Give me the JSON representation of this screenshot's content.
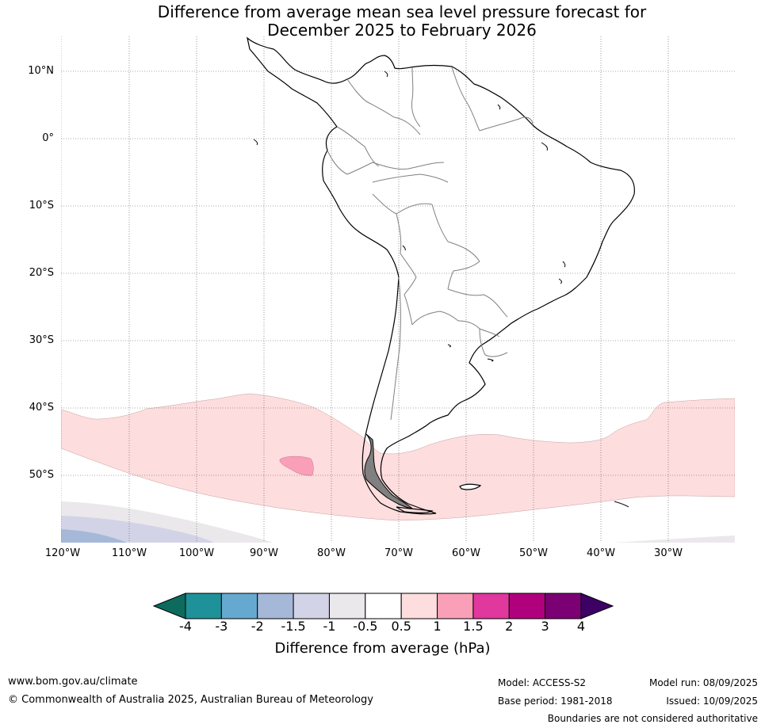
{
  "title": {
    "line1": "Difference from average mean sea level pressure forecast for",
    "line2": "December 2025 to February 2026"
  },
  "map": {
    "lat_labels": [
      "10°N",
      "0°",
      "10°S",
      "20°S",
      "30°S",
      "40°S",
      "50°S"
    ],
    "lon_labels": [
      "120°W",
      "110°W",
      "100°W",
      "90°W",
      "80°W",
      "70°W",
      "60°W",
      "50°W",
      "40°W",
      "30°W"
    ],
    "colors": {
      "land_outline": "#000000",
      "border": "#808080",
      "grid": "#555555",
      "anomaly_0_5_to_1": "#fddddd",
      "anomaly_1_to_1_5": "#f9a0b8",
      "anomaly_neg_0_5_to_neg_1": "#ebe8eb",
      "anomaly_neg_1_to_neg_1_5": "#d2d3e6",
      "anomaly_neg_1_5_to_neg_2": "#a6b8d8"
    }
  },
  "legend": {
    "title": "Difference from average (hPa)",
    "tick_labels": [
      "-4",
      "-3",
      "-2",
      "-1.5",
      "-1",
      "-0.5",
      "0.5",
      "1",
      "1.5",
      "2",
      "3",
      "4"
    ],
    "bins": [
      {
        "color": "#0d6b5e"
      },
      {
        "color": "#1f9199"
      },
      {
        "color": "#66a9d0"
      },
      {
        "color": "#a6b8d8"
      },
      {
        "color": "#d2d3e6"
      },
      {
        "color": "#ebe8eb"
      },
      {
        "color": "#ffffff"
      },
      {
        "color": "#fddddd"
      },
      {
        "color": "#f9a0b8"
      },
      {
        "color": "#e0389c"
      },
      {
        "color": "#b0007e"
      },
      {
        "color": "#7a0073"
      },
      {
        "color": "#3d0064"
      }
    ]
  },
  "footer": {
    "website": "www.bom.gov.au/climate",
    "copyright": "© Commonwealth of Australia 2025, Australian Bureau of Meteorology",
    "model": "Model: ACCESS-S2",
    "base_period": "Base period: 1981-2018",
    "model_run": "Model run: 08/09/2025",
    "issued": "Issued: 10/09/2025",
    "disclaimer": "Boundaries are not considered authoritative"
  }
}
